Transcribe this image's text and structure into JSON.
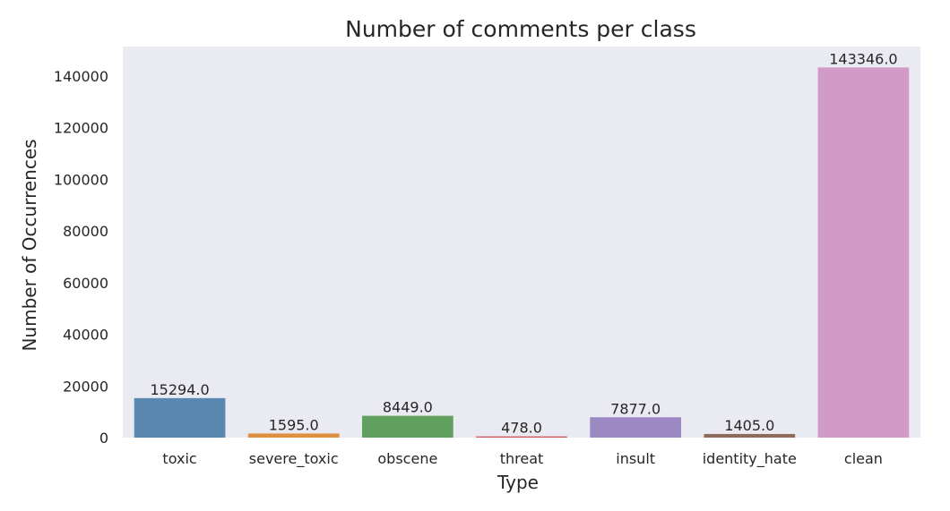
{
  "chart_data": {
    "type": "bar",
    "title": "Number of comments per class",
    "xlabel": "Type",
    "ylabel": "Number of Occurrences",
    "categories": [
      "toxic",
      "severe_toxic",
      "obscene",
      "threat",
      "insult",
      "identity_hate",
      "clean"
    ],
    "values": [
      15294.0,
      1595.0,
      8449.0,
      478.0,
      7877.0,
      1405.0,
      143346.0
    ],
    "value_labels": [
      "15294.0",
      "1595.0",
      "8449.0",
      "478.0",
      "7877.0",
      "1405.0",
      "143346.0"
    ],
    "colors": [
      "#5b88b1",
      "#e08f3f",
      "#61a160",
      "#cd5e60",
      "#9c88c2",
      "#8e6a58",
      "#d29ac7"
    ],
    "yticks": [
      0,
      20000,
      40000,
      60000,
      80000,
      100000,
      120000,
      140000
    ],
    "ylim": [
      0,
      150000
    ],
    "grid": false,
    "background": "#eaeaf2"
  }
}
